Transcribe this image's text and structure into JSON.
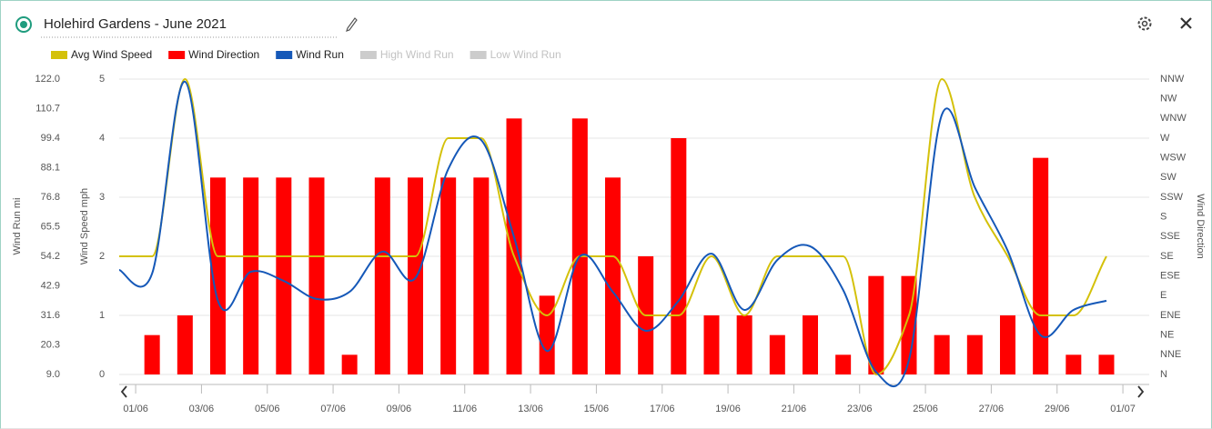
{
  "header": {
    "title": "Holehird Gardens - June 2021"
  },
  "chart_data": {
    "type": "combo",
    "xlim": [
      0.5,
      31.8
    ],
    "xticks": [
      {
        "value": 1,
        "label": "01/06"
      },
      {
        "value": 3,
        "label": "03/06"
      },
      {
        "value": 5,
        "label": "05/06"
      },
      {
        "value": 7,
        "label": "07/06"
      },
      {
        "value": 9,
        "label": "09/06"
      },
      {
        "value": 11,
        "label": "11/06"
      },
      {
        "value": 13,
        "label": "13/06"
      },
      {
        "value": 15,
        "label": "15/06"
      },
      {
        "value": 17,
        "label": "17/06"
      },
      {
        "value": 19,
        "label": "19/06"
      },
      {
        "value": 21,
        "label": "21/06"
      },
      {
        "value": 23,
        "label": "23/06"
      },
      {
        "value": 25,
        "label": "25/06"
      },
      {
        "value": 27,
        "label": "27/06"
      },
      {
        "value": 29,
        "label": "29/06"
      },
      {
        "value": 31,
        "label": "01/07"
      }
    ],
    "ylabel": "Wind Speed mph",
    "ylim": [
      0,
      5
    ],
    "yticks": [
      0,
      1,
      2,
      3,
      4,
      5
    ],
    "y2label": "Wind Run mi",
    "y2lim": [
      9,
      122
    ],
    "y2ticks": [
      {
        "value": 9,
        "label": "9.0"
      },
      20.3,
      31.6,
      42.9,
      54.2,
      65.5,
      76.8,
      88.1,
      99.4,
      110.7,
      {
        "value": 122,
        "label": "122.0"
      }
    ],
    "y3label": "Wind Direction",
    "y3lim": [
      0,
      337.5
    ],
    "y3ticks": [
      {
        "value": 0,
        "label": "N"
      },
      {
        "value": 22.5,
        "label": "NNE"
      },
      {
        "value": 45,
        "label": "NE"
      },
      {
        "value": 67.5,
        "label": "ENE"
      },
      {
        "value": 90,
        "label": "E"
      },
      {
        "value": 112.5,
        "label": "ESE"
      },
      {
        "value": 135,
        "label": "SE"
      },
      {
        "value": 157.5,
        "label": "SSE"
      },
      {
        "value": 180,
        "label": "S"
      },
      {
        "value": 202.5,
        "label": "SSW"
      },
      {
        "value": 225,
        "label": "SW"
      },
      {
        "value": 247.5,
        "label": "WSW"
      },
      {
        "value": 270,
        "label": "W"
      },
      {
        "value": 292.5,
        "label": "WNW"
      },
      {
        "value": 315,
        "label": "NW"
      },
      {
        "value": 337.5,
        "label": "NNW"
      }
    ],
    "grid": true,
    "series": [
      {
        "name": "Avg Wind Speed",
        "color": "#d4c10a",
        "type": "line",
        "curve": "monotone",
        "axis": "y",
        "x": [
          0.5,
          1.5,
          2.5,
          3.5,
          4.5,
          5.5,
          6.5,
          7.5,
          8.5,
          9.5,
          10.5,
          11.5,
          12.5,
          13.5,
          14.5,
          15.5,
          16.5,
          17.5,
          18.5,
          19.5,
          20.5,
          21.5,
          22.5,
          23.5,
          24.5,
          25.5,
          26.5,
          27.5,
          28.5,
          29.5,
          30.5
        ],
        "values": [
          2,
          2,
          5,
          2,
          2,
          2,
          2,
          2,
          2,
          2,
          4,
          4,
          2,
          1,
          2,
          2,
          1,
          1,
          2,
          1,
          2,
          2,
          2,
          0,
          1,
          5,
          3,
          2,
          1,
          1,
          2
        ]
      },
      {
        "name": "Wind Direction",
        "color": "#ff0000",
        "type": "bar",
        "axis": "y3",
        "x": [
          1.5,
          2.5,
          3.5,
          4.5,
          5.5,
          6.5,
          7.5,
          8.5,
          9.5,
          10.5,
          11.5,
          12.5,
          13.5,
          14.5,
          15.5,
          16.5,
          17.5,
          18.5,
          19.5,
          20.5,
          21.5,
          22.5,
          23.5,
          24.5,
          25.5,
          26.5,
          27.5,
          28.5,
          29.5,
          30.5
        ],
        "values": [
          45,
          67.5,
          225,
          225,
          225,
          225,
          22.5,
          225,
          225,
          225,
          225,
          292.5,
          90,
          292.5,
          225,
          135,
          270,
          67.5,
          67.5,
          45,
          67.5,
          22.5,
          112.5,
          112.5,
          45,
          45,
          67.5,
          247.5,
          22.5,
          22.5
        ]
      },
      {
        "name": "Wind Run",
        "color": "#1558b8",
        "type": "line",
        "curve": "spline",
        "axis": "y2",
        "x": [
          0.5,
          1.5,
          2.5,
          3.5,
          4.5,
          5.5,
          6.5,
          7.5,
          8.5,
          9.5,
          10.5,
          11.5,
          12.5,
          13.5,
          14.5,
          15.5,
          16.5,
          17.5,
          18.5,
          19.5,
          20.5,
          21.5,
          22.5,
          23.5,
          24.5,
          25.5,
          26.5,
          27.5,
          28.5,
          29.5,
          30.5
        ],
        "values": [
          49,
          47.6,
          121,
          37.2,
          48.3,
          44.8,
          37.9,
          40.6,
          56,
          45.9,
          87.6,
          98.7,
          61.5,
          18,
          54.2,
          40.6,
          25.7,
          37.2,
          55.2,
          33.7,
          52.8,
          58,
          41.3,
          10,
          14.6,
          108.4,
          80.6,
          56.3,
          24,
          33.7,
          37.2
        ]
      }
    ],
    "hidden_series": [
      {
        "name": "High Wind Run",
        "color": "#cccccc"
      },
      {
        "name": "Low Wind Run",
        "color": "#cccccc"
      }
    ]
  }
}
